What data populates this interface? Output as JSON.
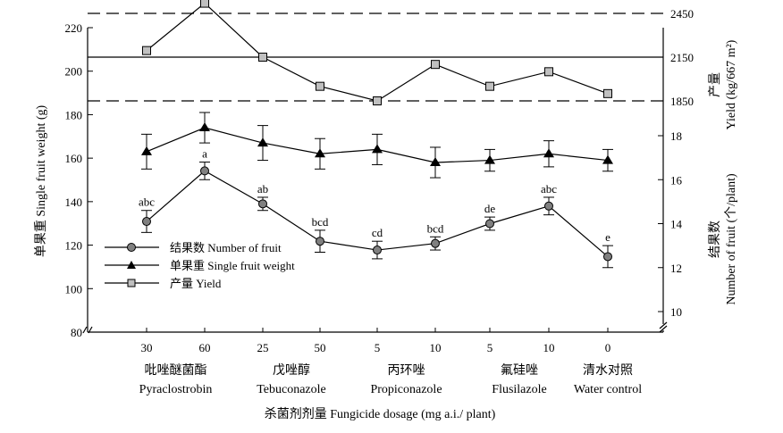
{
  "chart_data": {
    "type": "line",
    "categories": [
      {
        "dose": "30",
        "group": 0
      },
      {
        "dose": "60",
        "group": 0
      },
      {
        "dose": "25",
        "group": 1
      },
      {
        "dose": "50",
        "group": 1
      },
      {
        "dose": "5",
        "group": 2
      },
      {
        "dose": "10",
        "group": 2
      },
      {
        "dose": "5",
        "group": 3
      },
      {
        "dose": "10",
        "group": 3
      },
      {
        "dose": "0",
        "group": 4
      }
    ],
    "groups": [
      {
        "zh": "吡唑醚菌酯",
        "en": "Pyraclostrobin"
      },
      {
        "zh": "戊唑醇",
        "en": "Tebuconazole"
      },
      {
        "zh": "丙环唑",
        "en": "Propiconazole"
      },
      {
        "zh": "氟硅唑",
        "en": "Flusilazole"
      },
      {
        "zh": "清水对照",
        "en": "Water control"
      }
    ],
    "xlabel": "杀菌剂剂量 Fungicide dosage (mg a.i./ plant)",
    "left_axis": {
      "label": "单果重 Single fruit weight (g)",
      "ylim": [
        80,
        220
      ],
      "ticks": [
        "80",
        "100",
        "120",
        "140",
        "160",
        "180",
        "200",
        "220"
      ]
    },
    "right_axis_fruit": {
      "label_zh": "结果数",
      "label_en": "Number of fruit (个/plant)",
      "ylim": [
        10,
        18
      ],
      "ticks": [
        "10",
        "12",
        "14",
        "16",
        "18"
      ]
    },
    "right_axis_yield": {
      "label_zh": "产量",
      "label_en": "Yield (kg/667 m²)",
      "ticks": [
        "1850",
        "2150",
        "2450"
      ]
    },
    "series": [
      {
        "name": "结果数 Number of fruit",
        "axis": "fruit",
        "marker": "circle",
        "values": [
          14.1,
          16.4,
          14.9,
          13.2,
          12.8,
          13.1,
          14.0,
          14.8,
          12.5
        ],
        "errors": [
          0.5,
          0.4,
          0.3,
          0.5,
          0.4,
          0.3,
          0.3,
          0.4,
          0.5
        ],
        "significance": [
          "abc",
          "a",
          "ab",
          "bcd",
          "cd",
          "bcd",
          "de",
          "abc",
          "e"
        ]
      },
      {
        "name": "单果重 Single fruit weight",
        "axis": "weight",
        "marker": "triangle",
        "values": [
          163,
          174,
          167,
          162,
          164,
          158,
          159,
          162,
          159
        ],
        "errors": [
          8,
          7,
          8,
          7,
          7,
          7,
          5,
          6,
          5
        ]
      },
      {
        "name": "产量 Yield",
        "axis": "yield",
        "marker": "square",
        "values": [
          2195,
          2520,
          2150,
          1950,
          1850,
          2100,
          1950,
          2050,
          1900
        ]
      }
    ],
    "reference_lines": [
      {
        "value": "2450",
        "style": "dashed"
      },
      {
        "value": "2150",
        "style": "solid"
      },
      {
        "value": "1850",
        "style": "dashed"
      }
    ],
    "legend": "bottom-left"
  }
}
